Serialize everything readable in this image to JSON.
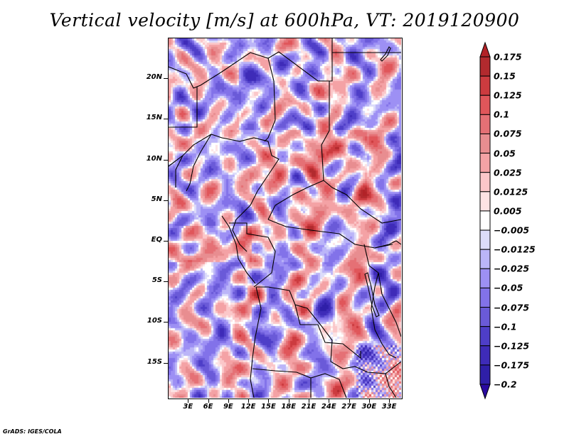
{
  "chart_data": {
    "type": "heatmap",
    "title": "Vertical velocity [m/s] at 600hPa, VT: 2019120900",
    "variable": "Vertical velocity",
    "units": "m/s",
    "level": "600hPa",
    "valid_time": "2019120900",
    "xlabel": "",
    "ylabel": "",
    "x_range_deg": [
      0,
      35
    ],
    "y_range_deg": [
      -19.5,
      25
    ],
    "x_ticks": [
      "3E",
      "6E",
      "9E",
      "12E",
      "15E",
      "18E",
      "21E",
      "24E",
      "27E",
      "30E",
      "33E"
    ],
    "x_tick_values": [
      3,
      6,
      9,
      12,
      15,
      18,
      21,
      24,
      27,
      30,
      33
    ],
    "y_ticks": [
      "20N",
      "15N",
      "10N",
      "5N",
      "EQ",
      "5S",
      "10S",
      "15S"
    ],
    "y_tick_values": [
      20,
      15,
      10,
      5,
      0,
      -5,
      -10,
      -15
    ],
    "grid": false,
    "legend": "right",
    "colorbar": {
      "orientation": "vertical",
      "labels": [
        "0.175",
        "0.15",
        "0.125",
        "0.1",
        "0.075",
        "0.05",
        "0.025",
        "0.0125",
        "0.005",
        "−0.005",
        "−0.0125",
        "−0.025",
        "−0.05",
        "−0.075",
        "−0.1",
        "−0.125",
        "−0.175",
        "−0.2"
      ],
      "levels": [
        0.175,
        0.15,
        0.125,
        0.1,
        0.075,
        0.05,
        0.025,
        0.0125,
        0.005,
        -0.005,
        -0.0125,
        -0.025,
        -0.05,
        -0.075,
        -0.1,
        -0.125,
        -0.175,
        -0.2
      ],
      "colors": [
        "#b22227",
        "#b22a2e",
        "#cc3b3f",
        "#e0565a",
        "#e57075",
        "#e88d90",
        "#f4a2a5",
        "#fbc7c9",
        "#fde3e4",
        "#ffffff",
        "#dcdcfa",
        "#bbb5f8",
        "#9d90f4",
        "#8272e9",
        "#6a5ad8",
        "#4e3ec8",
        "#3e2bb8",
        "#2f1fa8",
        "#2a0aa0"
      ],
      "extend": "both"
    },
    "features": [
      "country borders",
      "coastlines",
      "lakes"
    ]
  },
  "credit": "GrADS: IGES/COLA"
}
